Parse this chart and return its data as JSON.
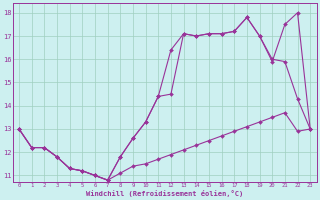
{
  "xlabel": "Windchill (Refroidissement éolien,°C)",
  "background_color": "#cdf0f0",
  "grid_color": "#a0d0c0",
  "line_color": "#993399",
  "xlim": [
    -0.5,
    23.5
  ],
  "ylim": [
    10.7,
    18.4
  ],
  "yticks": [
    11,
    12,
    13,
    14,
    15,
    16,
    17,
    18
  ],
  "xticks": [
    0,
    1,
    2,
    3,
    4,
    5,
    6,
    7,
    8,
    9,
    10,
    11,
    12,
    13,
    14,
    15,
    16,
    17,
    18,
    19,
    20,
    21,
    22,
    23
  ],
  "line1_x": [
    0,
    1,
    2,
    3,
    4,
    5,
    6,
    7,
    8,
    9,
    10,
    11,
    12,
    13,
    14,
    15,
    16,
    17,
    18,
    19,
    20,
    21,
    22,
    23
  ],
  "line1_y": [
    13.0,
    12.2,
    12.2,
    11.8,
    11.3,
    11.2,
    11.0,
    10.8,
    11.1,
    11.4,
    11.5,
    11.7,
    11.9,
    12.1,
    12.3,
    12.5,
    12.7,
    12.9,
    13.1,
    13.3,
    13.5,
    13.7,
    12.9,
    13.0
  ],
  "line2_x": [
    0,
    1,
    2,
    3,
    4,
    5,
    6,
    7,
    8,
    9,
    10,
    11,
    12,
    13,
    14,
    15,
    16,
    17,
    18,
    19,
    20,
    21,
    22,
    23
  ],
  "line2_y": [
    13.0,
    12.2,
    12.2,
    11.8,
    11.3,
    11.2,
    11.0,
    10.8,
    11.8,
    12.6,
    13.3,
    14.4,
    14.5,
    17.1,
    17.0,
    17.1,
    17.1,
    17.2,
    17.8,
    17.0,
    16.0,
    15.9,
    14.3,
    13.0
  ],
  "line3_x": [
    0,
    1,
    2,
    3,
    4,
    5,
    6,
    7,
    8,
    9,
    10,
    11,
    12,
    13,
    14,
    15,
    16,
    17,
    18,
    19,
    20,
    21,
    22,
    23
  ],
  "line3_y": [
    13.0,
    12.2,
    12.2,
    11.8,
    11.3,
    11.2,
    11.0,
    10.8,
    11.8,
    12.6,
    13.3,
    14.4,
    16.4,
    17.1,
    17.0,
    17.1,
    17.1,
    17.2,
    17.8,
    17.0,
    15.9,
    17.5,
    18.0,
    13.0
  ]
}
